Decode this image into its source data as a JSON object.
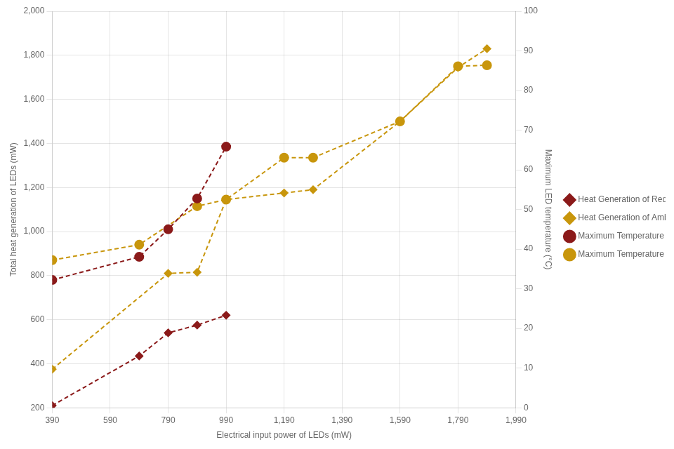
{
  "chart_data": {
    "type": "line",
    "xlabel": "Electrical input power of LEDs (mW)",
    "ylabel": "Total heat generation of LEDs (mW)",
    "y2label": "Maximum LED temperature (°C)",
    "xlim": [
      390,
      1990
    ],
    "xticks": [
      390,
      590,
      790,
      990,
      1190,
      1390,
      1590,
      1790,
      1990
    ],
    "ylim": [
      200,
      2000
    ],
    "yticks": [
      200,
      400,
      600,
      800,
      1000,
      1200,
      1400,
      1600,
      1800,
      2000
    ],
    "y2lim": [
      0,
      100
    ],
    "y2ticks": [
      0,
      10,
      20,
      30,
      40,
      50,
      60,
      70,
      80,
      90,
      100
    ],
    "grid": true,
    "legend": "right",
    "series": [
      {
        "name": "Heat Generation of Red LEDs",
        "color": "#8B1A1A",
        "marker": "diamond",
        "line_style": "dashed",
        "x": [
          390,
          690,
          790,
          890,
          990
        ],
        "values": [
          210,
          435,
          540,
          575,
          620
        ]
      },
      {
        "name": "Heat Generation of Amber LEDs",
        "color": "#C8960C",
        "marker": "diamond",
        "line_style": "dashed",
        "x": [
          390,
          790,
          890,
          990,
          1190,
          1290,
          1590,
          1790,
          1890
        ],
        "values": [
          375,
          810,
          815,
          1145,
          1175,
          1190,
          1500,
          1745,
          1830
        ]
      },
      {
        "name": "Maximum Temperature of Red LEDs",
        "color": "#8B1A1A",
        "marker": "circle",
        "line_style": "dashed",
        "x": [
          390,
          690,
          790,
          890,
          990
        ],
        "values": [
          780,
          885,
          1010,
          1150,
          1385
        ]
      },
      {
        "name": "Maximum Temperature of Amber LEDs",
        "color": "#C8960C",
        "marker": "circle",
        "line_style": "dashed",
        "x": [
          390,
          690,
          890,
          990,
          1190,
          1290,
          1590,
          1790,
          1890
        ],
        "values": [
          870,
          940,
          1115,
          1145,
          1335,
          1335,
          1500,
          1750,
          1755
        ]
      }
    ]
  }
}
